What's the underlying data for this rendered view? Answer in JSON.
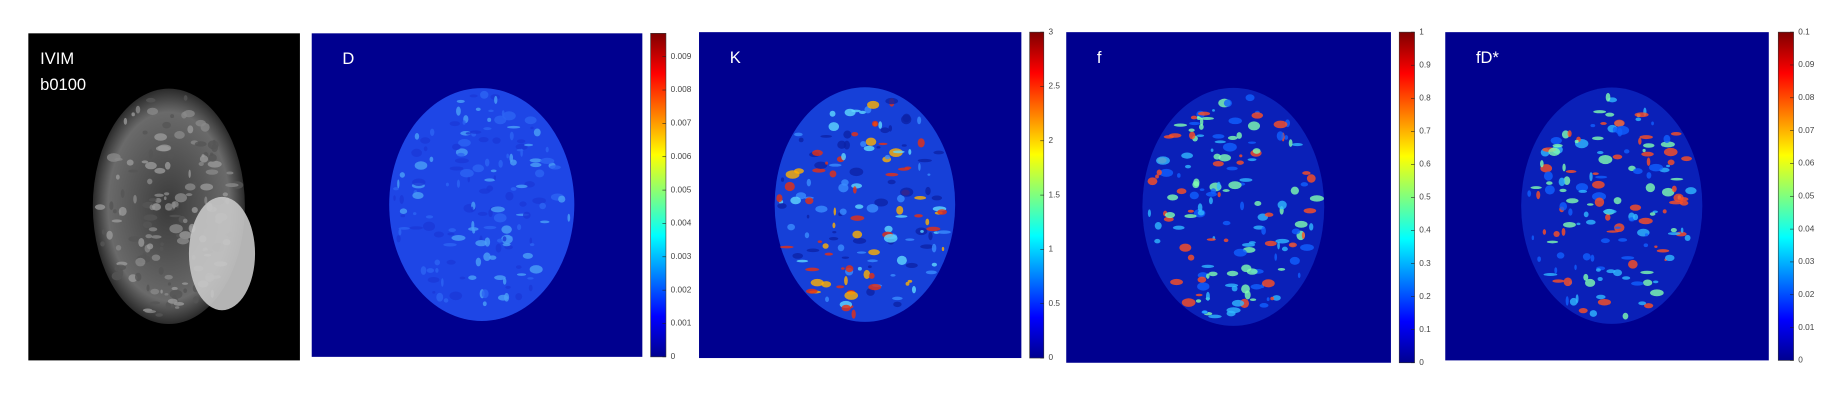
{
  "panels": [
    {
      "label_lines": [
        "IVIM",
        "b0100"
      ]
    },
    {
      "label": "D",
      "colorbar": {
        "lim": [
          0,
          0.0097
        ],
        "ticks": [
          0,
          0.001,
          0.002,
          0.003,
          0.004,
          0.005,
          0.006,
          0.007,
          0.008,
          0.009
        ]
      }
    },
    {
      "label": "K",
      "colorbar": {
        "lim": [
          0,
          3
        ],
        "ticks": [
          0,
          0.5,
          1,
          1.5,
          2,
          2.5,
          3
        ]
      }
    },
    {
      "label": "f",
      "colorbar": {
        "lim": [
          0,
          1
        ],
        "ticks": [
          0,
          0.1,
          0.2,
          0.3,
          0.4,
          0.5,
          0.6,
          0.7,
          0.8,
          0.9,
          1
        ]
      }
    },
    {
      "label": "fD*",
      "colorbar": {
        "lim": [
          0,
          0.1
        ],
        "ticks": [
          0,
          0.01,
          0.02,
          0.03,
          0.04,
          0.05,
          0.06,
          0.07,
          0.08,
          0.09,
          0.1
        ]
      }
    }
  ]
}
